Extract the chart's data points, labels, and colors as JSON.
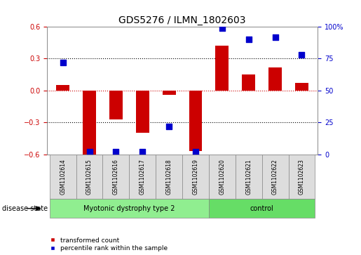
{
  "title": "GDS5276 / ILMN_1802603",
  "samples": [
    "GSM1102614",
    "GSM1102615",
    "GSM1102616",
    "GSM1102617",
    "GSM1102618",
    "GSM1102619",
    "GSM1102620",
    "GSM1102621",
    "GSM1102622",
    "GSM1102623"
  ],
  "transformed_count": [
    0.05,
    -0.6,
    -0.27,
    -0.4,
    -0.04,
    -0.57,
    0.42,
    0.15,
    0.22,
    0.07
  ],
  "percentile_rank": [
    72,
    2,
    2,
    2,
    22,
    2,
    99,
    90,
    92,
    78
  ],
  "groups": [
    {
      "label": "Myotonic dystrophy type 2",
      "start": 0,
      "end": 5,
      "color": "#90EE90"
    },
    {
      "label": "control",
      "start": 6,
      "end": 9,
      "color": "#66DD66"
    }
  ],
  "ylim_left": [
    -0.6,
    0.6
  ],
  "ylim_right": [
    0,
    100
  ],
  "yticks_left": [
    -0.6,
    -0.3,
    0.0,
    0.3,
    0.6
  ],
  "yticks_right": [
    0,
    25,
    50,
    75,
    100
  ],
  "yticklabels_right": [
    "0",
    "25",
    "50",
    "75",
    "100%"
  ],
  "bar_color": "#CC0000",
  "dot_color": "#0000CC",
  "dotted_line_color": "black",
  "zero_line_color": "#CC0000",
  "bg_color": "white",
  "plot_bg": "white",
  "left_tick_color": "#CC0000",
  "right_tick_color": "#0000CC",
  "cell_bg": "#DDDDDD",
  "disease_state_label": "disease state",
  "legend_red_label": "transformed count",
  "legend_blue_label": "percentile rank within the sample",
  "bar_width": 0.5,
  "dot_size": 30
}
